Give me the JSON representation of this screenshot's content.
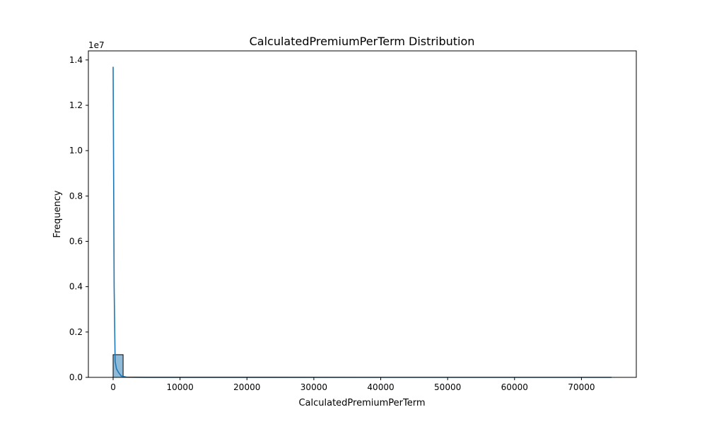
{
  "chart_data": {
    "type": "bar",
    "title": "CalculatedPremiumPerTerm Distribution",
    "xlabel": "CalculatedPremiumPerTerm",
    "ylabel": "Frequency",
    "y_offset_label": "1e7",
    "xlim": [
      -3700,
      78200
    ],
    "ylim": [
      0,
      14400000
    ],
    "xticks": [
      0,
      10000,
      20000,
      30000,
      40000,
      50000,
      60000,
      70000
    ],
    "xtick_labels": [
      "0",
      "10000",
      "20000",
      "30000",
      "40000",
      "50000",
      "60000",
      "70000"
    ],
    "yticks": [
      0,
      2000000,
      4000000,
      6000000,
      8000000,
      10000000,
      12000000,
      14000000
    ],
    "ytick_labels": [
      "0.0",
      "0.2",
      "0.4",
      "0.6",
      "0.8",
      "1.0",
      "1.2",
      "1.4"
    ],
    "histogram": {
      "bin_edges": [
        0,
        1490
      ],
      "counts": [
        1000000
      ],
      "color": "#1f77b4",
      "alpha": 0.5,
      "edgecolor": "#000000"
    },
    "kde": {
      "name": "",
      "color": "#1f77b4",
      "x": [
        0,
        150,
        300,
        500,
        800,
        1200,
        2000,
        5000,
        20000,
        40000,
        60000,
        74500
      ],
      "y": [
        13700000,
        4000000,
        700000,
        380000,
        220000,
        60000,
        10000,
        2000,
        500,
        200,
        100,
        0
      ]
    },
    "grid": false,
    "legend": "none"
  }
}
